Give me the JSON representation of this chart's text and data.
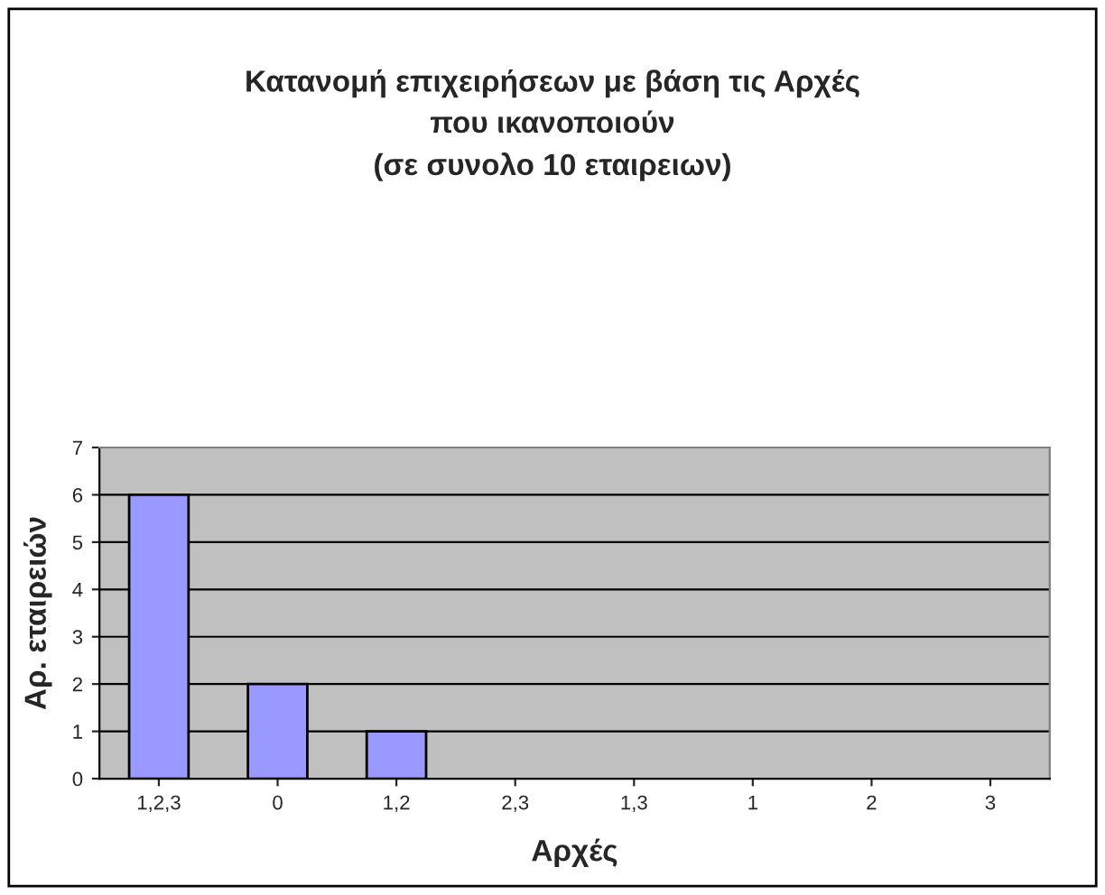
{
  "chart_data": {
    "type": "bar",
    "title": "Κατανομή επιχειρήσεων με βάση τις Αρχές\nπου ικανοποιούν\n(σε συνολο 10 εταιρειων)",
    "xlabel": "Αρχές",
    "ylabel": "Αρ. εταιρειών",
    "categories": [
      "1,2,3",
      "0",
      "1,2",
      "2,3",
      "1,3",
      "1",
      "2",
      "3"
    ],
    "values": [
      6,
      2,
      1,
      0,
      0,
      0,
      0,
      0
    ],
    "color": "#9999ff",
    "ylim": [
      0,
      7
    ],
    "yticks": [
      0,
      1,
      2,
      3,
      4,
      5,
      6,
      7
    ],
    "grid": "y"
  }
}
